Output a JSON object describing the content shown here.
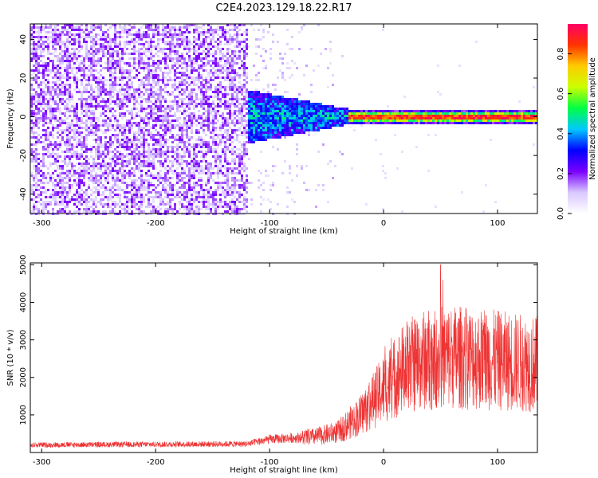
{
  "figure": {
    "title": "C2E4.2023.129.18.22.R17"
  },
  "chart_data": [
    {
      "type": "heatmap",
      "title": "",
      "xlabel": "Height of straight line (km)",
      "ylabel": "Frequency (Hz)",
      "xlim": [
        -310,
        135
      ],
      "ylim": [
        -50,
        48
      ],
      "x_ticks": [
        -300,
        -200,
        -100,
        0,
        100
      ],
      "y_ticks": [
        -40,
        -20,
        0,
        20,
        40
      ],
      "colorbar": {
        "label": "Normalized spectral amplitude",
        "range": [
          0.0,
          0.95
        ],
        "ticks": [
          0.0,
          0.2,
          0.4,
          0.6,
          0.8
        ],
        "colormap": [
          "#ffffff",
          "#d9c8ff",
          "#7a00ff",
          "#0000ff",
          "#00c8ff",
          "#00ff44",
          "#ccff00",
          "#ffcc00",
          "#ff3300",
          "#ff0066"
        ]
      },
      "regions": [
        {
          "x_range": [
            -310,
            -120
          ],
          "freq_range": [
            -50,
            48
          ],
          "amplitude": "0.1-0.2",
          "pattern": "broadband noise"
        },
        {
          "x_range": [
            -120,
            -30
          ],
          "freq_range": [
            -12,
            12
          ],
          "amplitude": "0.2-0.45",
          "pattern": "narrowing band"
        },
        {
          "x_range": [
            -30,
            135
          ],
          "freq_range": [
            -2,
            2
          ],
          "amplitude": "0.8-0.95",
          "pattern": "narrow line near 0 Hz"
        }
      ]
    },
    {
      "type": "line",
      "title": "",
      "xlabel": "Height of straight line (km)",
      "ylabel": "SNR (10 * v/v)",
      "xlim": [
        -310,
        135
      ],
      "ylim": [
        0,
        5050
      ],
      "x_ticks": [
        -300,
        -200,
        -100,
        0,
        100
      ],
      "y_ticks": [
        1000,
        2000,
        3000,
        4000,
        5000
      ],
      "line_color": "#ee3333",
      "trend": {
        "x": [
          -310,
          -120,
          -100,
          -60,
          -40,
          -20,
          0,
          20,
          40,
          60,
          80,
          100,
          120,
          135
        ],
        "y": [
          200,
          230,
          350,
          420,
          550,
          1000,
          1700,
          2300,
          2500,
          2550,
          2500,
          2450,
          2400,
          2350
        ]
      },
      "peak": {
        "x": 50,
        "y": 5000
      }
    }
  ]
}
